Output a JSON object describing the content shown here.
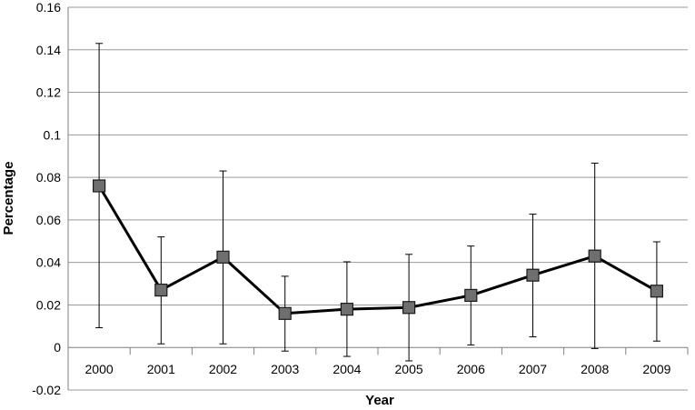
{
  "chart_data": {
    "type": "line",
    "xlabel": "Year",
    "ylabel": "Percentage",
    "categories": [
      "2000",
      "2001",
      "2002",
      "2003",
      "2004",
      "2005",
      "2006",
      "2007",
      "2008",
      "2009"
    ],
    "yticks": [
      "-0.02",
      "0",
      "0.02",
      "0.04",
      "0.06",
      "0.08",
      "0.1",
      "0.12",
      "0.14",
      "0.16"
    ],
    "ylim": [
      -0.02,
      0.16
    ],
    "grid": true,
    "series": [
      {
        "values": [
          0.076,
          0.027,
          0.0425,
          0.016,
          0.018,
          0.0188,
          0.0245,
          0.034,
          0.043,
          0.0265
        ],
        "error_upper": [
          0.143,
          0.052,
          0.083,
          0.0335,
          0.0403,
          0.0438,
          0.0477,
          0.0627,
          0.0867,
          0.0497
        ],
        "error_lower": [
          0.0093,
          0.0017,
          0.0017,
          -0.0017,
          -0.0042,
          -0.0063,
          0.0012,
          0.005,
          -0.0005,
          0.003
        ]
      }
    ],
    "colors": {
      "line": "#000000",
      "marker_fill": "#6f6f6f",
      "marker_stroke": "#1a1a1a",
      "grid": "#9a9a9a",
      "axis": "#7f7f7f"
    }
  }
}
